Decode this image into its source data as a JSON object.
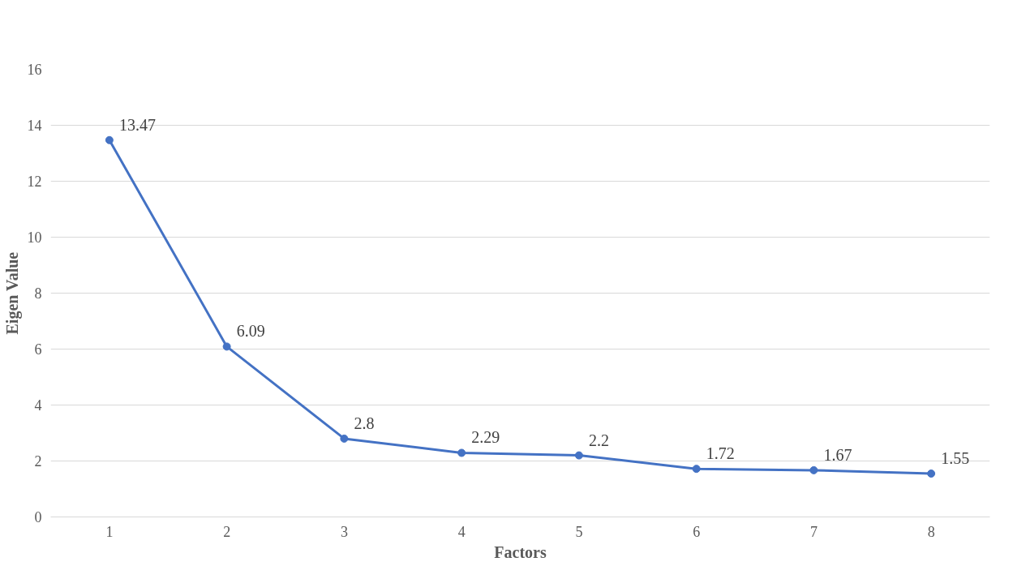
{
  "chart_data": {
    "type": "line",
    "xlabel": "Factors",
    "ylabel": "Eigen Value",
    "categories": [
      "1",
      "2",
      "3",
      "4",
      "5",
      "6",
      "7",
      "8"
    ],
    "series": [
      {
        "color": "#4472c4",
        "values": [
          13.47,
          6.09,
          2.8,
          2.29,
          2.2,
          1.72,
          1.67,
          1.55
        ]
      }
    ],
    "ylim": [
      0,
      16
    ],
    "yticks": [
      0,
      2,
      4,
      6,
      8,
      10,
      12,
      14,
      16
    ],
    "grid": "y",
    "marker": "circle",
    "line_style": "solid",
    "data_labels": true
  }
}
